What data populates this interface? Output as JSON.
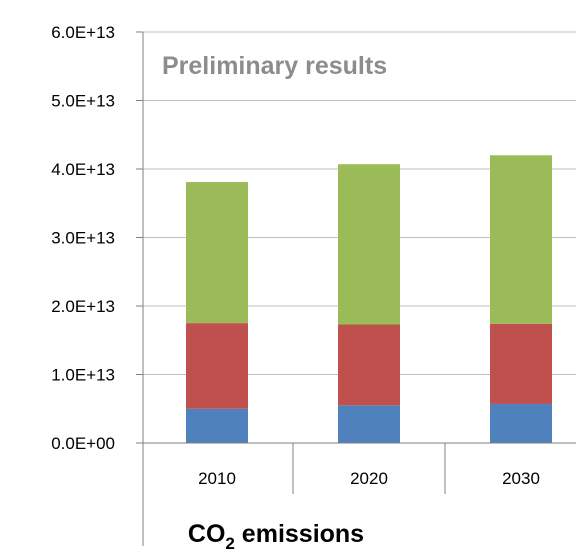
{
  "chart_data": {
    "type": "bar",
    "stacked": true,
    "categories": [
      "2010",
      "2020",
      "2030"
    ],
    "series": [
      {
        "color": "#4f81bd",
        "values": [
          5000000000000.0,
          5500000000000.0,
          5700000000000.0
        ]
      },
      {
        "color": "#c0504d",
        "values": [
          12500000000000.0,
          11800000000000.0,
          11700000000000.0
        ]
      },
      {
        "color": "#9bbb59",
        "values": [
          20600000000000.0,
          23400000000000.0,
          24600000000000.0
        ]
      }
    ],
    "ylim": [
      0,
      60000000000000.0
    ],
    "yticks": [
      "0.0E+00",
      "1.0E+13",
      "2.0E+13",
      "3.0E+13",
      "4.0E+13",
      "5.0E+13",
      "6.0E+13"
    ],
    "annotation": "Preliminary results",
    "xlabel_main": "CO",
    "xlabel_sub": "2",
    "xlabel_rest": " emissions",
    "grid": true,
    "legend": "none"
  }
}
